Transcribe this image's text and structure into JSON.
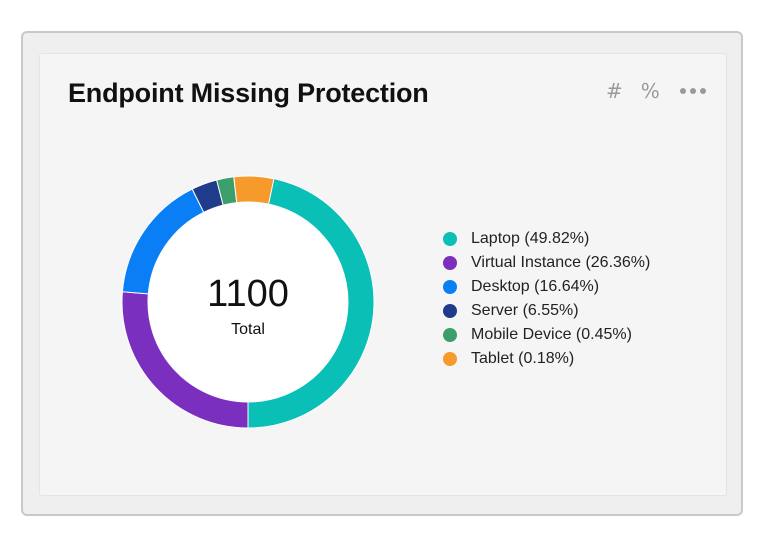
{
  "card": {
    "title": "Endpoint Missing Protection",
    "toolbar": {
      "hash_label": "#",
      "percent_label": "%",
      "more_icon": "more-horizontal-icon"
    }
  },
  "chart_data": {
    "type": "pie",
    "variant": "donut",
    "center_value": "1100",
    "center_label": "Total",
    "legend_position": "right",
    "series": [
      {
        "name": "Laptop",
        "label": "Laptop (49.82%)",
        "value": 49.82,
        "color": "#0abfb5"
      },
      {
        "name": "Virtual Instance",
        "label": "Virtual Instance (26.36%)",
        "value": 26.36,
        "color": "#7b2fbe"
      },
      {
        "name": "Desktop",
        "label": "Desktop (16.64%)",
        "value": 16.64,
        "color": "#0a7ef5"
      },
      {
        "name": "Server",
        "label": "Server (6.55%)",
        "value": 6.55,
        "color": "#1f3b8c"
      },
      {
        "name": "Mobile Device",
        "label": "Mobile Device (0.45%)",
        "value": 0.45,
        "color": "#3c9e6a"
      },
      {
        "name": "Tablet",
        "label": "Tablet (0.18%)",
        "value": 0.18,
        "color": "#f59a2b"
      }
    ]
  }
}
